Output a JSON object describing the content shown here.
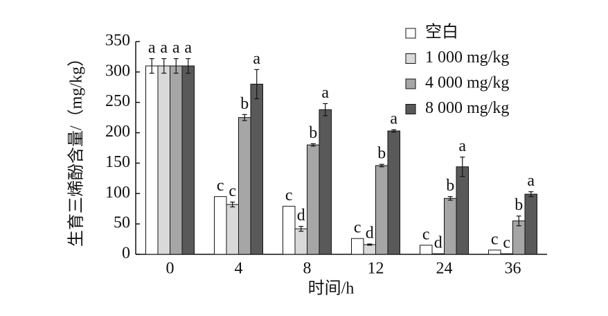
{
  "chart_data": {
    "type": "bar",
    "x_label": "时间/h",
    "y_label": "生育三烯酚含量/（mg/kg）",
    "categories": [
      "0",
      "4",
      "8",
      "12",
      "24",
      "36"
    ],
    "ylim": [
      0,
      350
    ],
    "yticks": [
      0,
      50,
      100,
      150,
      200,
      250,
      300,
      350
    ],
    "legend": "top-right",
    "series": [
      {
        "name": "空白",
        "color": "#ffffff",
        "values": [
          310,
          95,
          79,
          26,
          15,
          7
        ],
        "errors": [
          12,
          0,
          0,
          0,
          0,
          0
        ],
        "letters": [
          "a",
          "c",
          "c",
          "c",
          "c",
          "c"
        ]
      },
      {
        "name": "1 000 mg/kg",
        "color": "#d9d9d9",
        "values": [
          310,
          82,
          42,
          16,
          1,
          1
        ],
        "errors": [
          12,
          4,
          4,
          1,
          0,
          0
        ],
        "letters": [
          "a",
          "c",
          "d",
          "d",
          "d",
          "c"
        ]
      },
      {
        "name": "4 000 mg/kg",
        "color": "#a6a6a6",
        "values": [
          310,
          225,
          180,
          146,
          92,
          55
        ],
        "errors": [
          12,
          5,
          2,
          2,
          3,
          8
        ],
        "letters": [
          "a",
          "b",
          "b",
          "b",
          "b",
          "b"
        ]
      },
      {
        "name": "8 000 mg/kg",
        "color": "#595959",
        "values": [
          310,
          280,
          238,
          203,
          144,
          99
        ],
        "errors": [
          12,
          24,
          10,
          2,
          16,
          4
        ],
        "letters": [
          "a",
          "a",
          "a",
          "a",
          "a",
          "a"
        ]
      }
    ]
  }
}
